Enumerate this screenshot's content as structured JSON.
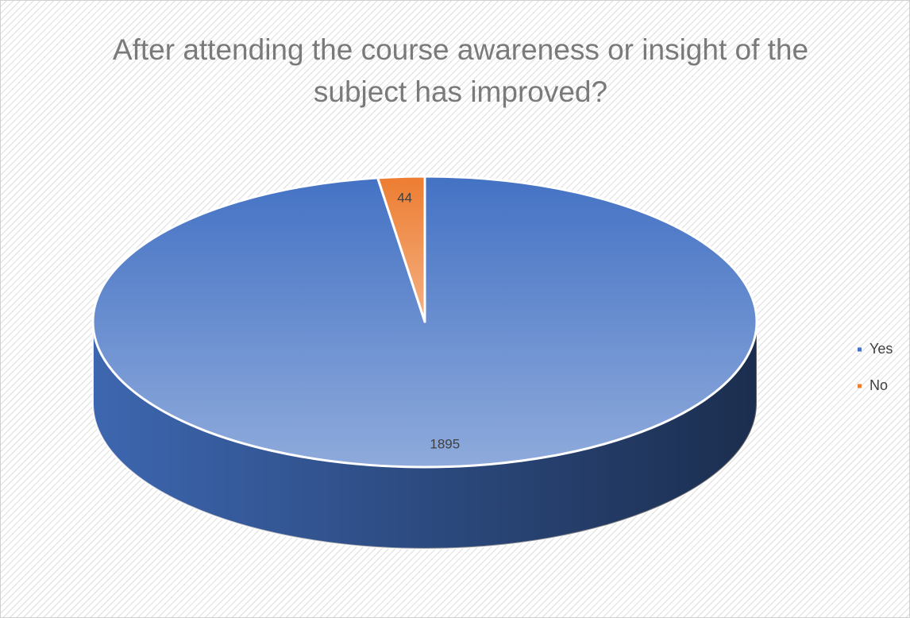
{
  "chart_data": {
    "type": "pie",
    "title": "After attending the course awareness or insight of the subject has improved?",
    "categories": [
      "Yes",
      "No"
    ],
    "values": [
      1895,
      44
    ],
    "colors": [
      "#4472c4",
      "#ed7d31"
    ],
    "legend": "right"
  }
}
